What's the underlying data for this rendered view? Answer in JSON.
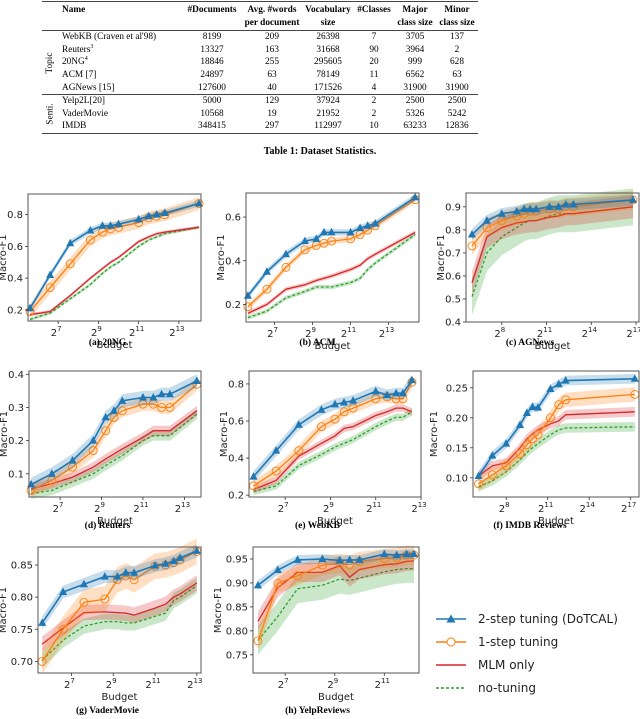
{
  "table": {
    "headers": [
      "",
      "Name",
      "#Documents",
      "Avg. #words per document",
      "Vocabulary size",
      "#Classes",
      "Major class size",
      "Minor class size"
    ],
    "header_lines": [
      [
        "",
        "Name",
        "#Documents",
        "Avg. #words",
        "Vocabulary",
        "#Classes",
        "Major",
        "Minor"
      ],
      [
        "",
        "",
        "",
        "per document",
        "size",
        "",
        "class size",
        "class size"
      ]
    ],
    "groups": [
      {
        "label": "Topic",
        "rows": [
          {
            "name": "WebKB (Craven et al'98)",
            "sup": "",
            "documents": "8199",
            "avg_words": "209",
            "vocab": "26398",
            "classes": "7",
            "major": "3705",
            "minor": "137"
          },
          {
            "name": "Reuters",
            "sup": "3",
            "documents": "13327",
            "avg_words": "163",
            "vocab": "31668",
            "classes": "90",
            "major": "3964",
            "minor": "2"
          },
          {
            "name": "20NG",
            "sup": "4",
            "documents": "18846",
            "avg_words": "255",
            "vocab": "295605",
            "classes": "20",
            "major": "999",
            "minor": "628"
          },
          {
            "name": "ACM [7]",
            "sup": "",
            "documents": "24897",
            "avg_words": "63",
            "vocab": "78149",
            "classes": "11",
            "major": "6562",
            "minor": "63"
          },
          {
            "name": "AGNews [15]",
            "sup": "",
            "documents": "127600",
            "avg_words": "40",
            "vocab": "171526",
            "classes": "4",
            "major": "31900",
            "minor": "31900"
          }
        ]
      },
      {
        "label": "Senti.",
        "rows": [
          {
            "name": "Yelp2L[20]",
            "sup": "",
            "documents": "5000",
            "avg_words": "129",
            "vocab": "37924",
            "classes": "2",
            "major": "2500",
            "minor": "2500"
          },
          {
            "name": "VaderMovie",
            "sup": "",
            "documents": "10568",
            "avg_words": "19",
            "vocab": "21952",
            "classes": "2",
            "major": "5326",
            "minor": "5242"
          },
          {
            "name": "IMDB",
            "sup": "",
            "documents": "348415",
            "avg_words": "297",
            "vocab": "112997",
            "classes": "10",
            "major": "63233",
            "minor": "12836"
          }
        ]
      }
    ],
    "caption": "Table 1: Dataset Statistics."
  },
  "legend": [
    {
      "key": "dotcal",
      "label": "2-step tuning (DoTCAL)",
      "color": "#1f77b4",
      "marker": "triangle",
      "dash": "solid"
    },
    {
      "key": "one",
      "label": "1-step tuning",
      "color": "#ff7f0e",
      "marker": "circle",
      "dash": "solid"
    },
    {
      "key": "mlm",
      "label": "MLM only",
      "color": "#d62728",
      "marker": "none",
      "dash": "solid"
    },
    {
      "key": "none",
      "label": "no-tuning",
      "color": "#2ca02c",
      "marker": "none",
      "dash": "dashed"
    }
  ],
  "chart_data": [
    {
      "type": "line",
      "id": "a",
      "title": "(a) 20NG",
      "xlabel": "Budget",
      "ylabel": "Macro-F1",
      "xscale": "log2",
      "xlim_log2": [
        5.5,
        14.1
      ],
      "xticks_log2": [
        7,
        9,
        11,
        13
      ],
      "ylim": [
        0.13,
        0.93
      ],
      "yticks": [
        "0.2",
        "0.4",
        "0.6",
        "0.8"
      ],
      "x_log2": [
        5.6,
        6.6,
        7.6,
        8.6,
        9.2,
        9.6,
        10.0,
        11.0,
        11.5,
        11.9,
        12.3,
        14.0
      ],
      "series": [
        {
          "key": "dotcal",
          "values": [
            0.21,
            0.42,
            0.62,
            0.7,
            0.73,
            0.73,
            0.74,
            0.77,
            0.79,
            0.8,
            0.81,
            0.87
          ],
          "band": 0.02
        },
        {
          "key": "one",
          "values": [
            0.19,
            0.34,
            0.49,
            0.64,
            0.69,
            0.71,
            0.72,
            0.75,
            0.78,
            0.79,
            0.8,
            0.87
          ],
          "band": 0.04
        },
        {
          "key": "mlm",
          "values": [
            0.17,
            0.19,
            0.29,
            0.4,
            0.46,
            0.5,
            0.53,
            0.63,
            0.66,
            0.68,
            0.69,
            0.72
          ],
          "band": 0.01
        },
        {
          "key": "none",
          "values": [
            0.14,
            0.18,
            0.27,
            0.36,
            0.43,
            0.47,
            0.5,
            0.6,
            0.64,
            0.66,
            0.68,
            0.72
          ],
          "band": 0.01
        }
      ]
    },
    {
      "type": "line",
      "id": "b",
      "title": "(b) ACM",
      "xlabel": "Budget",
      "ylabel": "Macro-F1",
      "xscale": "log2",
      "xlim_log2": [
        5.5,
        14.6
      ],
      "xticks_log2": [
        7,
        9,
        11,
        13
      ],
      "ylim": [
        0.12,
        0.71
      ],
      "yticks": [
        "0.2",
        "0.4",
        "0.6"
      ],
      "x_log2": [
        5.6,
        6.6,
        7.6,
        8.6,
        9.2,
        9.6,
        10.0,
        11.0,
        11.5,
        11.9,
        12.3,
        14.4
      ],
      "series": [
        {
          "key": "dotcal",
          "values": [
            0.24,
            0.35,
            0.43,
            0.49,
            0.5,
            0.53,
            0.53,
            0.53,
            0.55,
            0.56,
            0.57,
            0.69
          ],
          "band": 0.015
        },
        {
          "key": "one",
          "values": [
            0.19,
            0.27,
            0.37,
            0.45,
            0.47,
            0.48,
            0.49,
            0.5,
            0.52,
            0.54,
            0.56,
            0.68
          ],
          "band": 0.015
        },
        {
          "key": "mlm",
          "values": [
            0.16,
            0.2,
            0.27,
            0.29,
            0.31,
            0.32,
            0.33,
            0.36,
            0.38,
            0.41,
            0.43,
            0.53
          ],
          "band": 0.01
        },
        {
          "key": "none",
          "values": [
            0.14,
            0.17,
            0.23,
            0.26,
            0.28,
            0.28,
            0.28,
            0.3,
            0.32,
            0.36,
            0.39,
            0.52
          ],
          "band": 0.01
        }
      ]
    },
    {
      "type": "line",
      "id": "c",
      "title": "(c) AGNews",
      "xlabel": "Budget",
      "ylabel": "Macro-F1",
      "xscale": "log2",
      "xlim_log2": [
        5.6,
        17.2
      ],
      "xticks_log2": [
        8,
        11,
        14,
        17
      ],
      "ylim": [
        0.4,
        0.96
      ],
      "yticks": [
        "0.4",
        "0.5",
        "0.6",
        "0.7",
        "0.8",
        "0.9"
      ],
      "x_log2": [
        6.0,
        7.0,
        8.0,
        9.0,
        9.5,
        9.9,
        10.3,
        11.2,
        11.8,
        12.3,
        12.8,
        16.8
      ],
      "series": [
        {
          "key": "dotcal",
          "values": [
            0.78,
            0.84,
            0.87,
            0.88,
            0.89,
            0.89,
            0.89,
            0.9,
            0.9,
            0.91,
            0.91,
            0.93
          ],
          "band": 0.025
        },
        {
          "key": "one",
          "values": [
            0.73,
            0.81,
            0.84,
            0.86,
            0.87,
            0.88,
            0.88,
            0.89,
            0.89,
            0.9,
            0.9,
            0.93
          ],
          "band": 0.04
        },
        {
          "key": "mlm",
          "values": [
            0.57,
            0.77,
            0.81,
            0.83,
            0.835,
            0.84,
            0.84,
            0.855,
            0.86,
            0.87,
            0.87,
            0.9
          ],
          "band": 0.05
        },
        {
          "key": "none",
          "values": [
            0.51,
            0.7,
            0.77,
            0.81,
            0.83,
            0.84,
            0.84,
            0.86,
            0.87,
            0.87,
            0.87,
            0.9
          ],
          "band": 0.08
        }
      ]
    },
    {
      "type": "line",
      "id": "d",
      "title": "(d) Reuters",
      "xlabel": "Budget",
      "ylabel": "Macro-F1",
      "xscale": "log2",
      "xlim_log2": [
        5.5,
        13.8
      ],
      "xticks_log2": [
        7,
        9,
        11,
        13
      ],
      "ylim": [
        0.03,
        0.41
      ],
      "yticks": [
        "0.1",
        "0.2",
        "0.3",
        "0.4"
      ],
      "x_log2": [
        5.6,
        6.6,
        7.6,
        8.6,
        9.2,
        9.6,
        10.0,
        11.0,
        11.5,
        11.9,
        12.3,
        13.6
      ],
      "series": [
        {
          "key": "dotcal",
          "values": [
            0.068,
            0.1,
            0.14,
            0.2,
            0.27,
            0.29,
            0.32,
            0.33,
            0.33,
            0.34,
            0.34,
            0.38
          ],
          "band": 0.02
        },
        {
          "key": "one",
          "values": [
            0.05,
            0.08,
            0.12,
            0.17,
            0.23,
            0.27,
            0.29,
            0.31,
            0.31,
            0.3,
            0.3,
            0.37
          ],
          "band": 0.02
        },
        {
          "key": "mlm",
          "values": [
            0.055,
            0.07,
            0.09,
            0.12,
            0.145,
            0.16,
            0.175,
            0.21,
            0.23,
            0.23,
            0.23,
            0.29
          ],
          "band": 0.015
        },
        {
          "key": "none",
          "values": [
            0.04,
            0.05,
            0.075,
            0.1,
            0.125,
            0.14,
            0.155,
            0.2,
            0.215,
            0.215,
            0.215,
            0.28
          ],
          "band": 0.015
        }
      ]
    },
    {
      "type": "line",
      "id": "e",
      "title": "(e) WebKB",
      "xlabel": "Budget",
      "ylabel": "Macro-F1",
      "xscale": "log2",
      "xlim_log2": [
        5.4,
        13.0
      ],
      "xticks_log2": [
        7,
        9,
        11,
        13
      ],
      "ylim": [
        0.19,
        0.87
      ],
      "yticks": [
        "0.2",
        "0.4",
        "0.6",
        "0.8"
      ],
      "x_log2": [
        5.6,
        6.6,
        7.6,
        8.6,
        9.2,
        9.6,
        10.0,
        11.0,
        11.5,
        11.9,
        12.2,
        12.6
      ],
      "series": [
        {
          "key": "dotcal",
          "values": [
            0.3,
            0.44,
            0.58,
            0.66,
            0.69,
            0.7,
            0.71,
            0.76,
            0.74,
            0.75,
            0.75,
            0.82
          ],
          "band": 0.03
        },
        {
          "key": "one",
          "values": [
            0.25,
            0.33,
            0.44,
            0.57,
            0.61,
            0.65,
            0.67,
            0.72,
            0.73,
            0.72,
            0.72,
            0.81
          ],
          "band": 0.03
        },
        {
          "key": "mlm",
          "values": [
            0.23,
            0.28,
            0.41,
            0.48,
            0.52,
            0.56,
            0.57,
            0.63,
            0.65,
            0.67,
            0.67,
            0.65
          ],
          "band": 0.02
        },
        {
          "key": "none",
          "values": [
            0.22,
            0.25,
            0.36,
            0.42,
            0.46,
            0.48,
            0.5,
            0.57,
            0.6,
            0.62,
            0.62,
            0.65
          ],
          "band": 0.02
        }
      ]
    },
    {
      "type": "line",
      "id": "f",
      "title": "(f) IMDB Reviews",
      "xlabel": "Budget",
      "ylabel": "Macro-F1",
      "xscale": "log2",
      "xlim_log2": [
        5.6,
        17.6
      ],
      "xticks_log2": [
        8,
        11,
        14,
        17
      ],
      "ylim": [
        0.068,
        0.278
      ],
      "yticks": [
        "0.10",
        "0.15",
        "0.20",
        "0.25"
      ],
      "x_log2": [
        6.0,
        7.0,
        8.0,
        9.0,
        9.5,
        9.9,
        10.3,
        11.2,
        11.8,
        12.3,
        17.3
      ],
      "series": [
        {
          "key": "dotcal",
          "values": [
            0.103,
            0.137,
            0.157,
            0.188,
            0.208,
            0.218,
            0.217,
            0.248,
            0.256,
            0.262,
            0.265
          ],
          "band": 0.008
        },
        {
          "key": "one",
          "values": [
            0.09,
            0.105,
            0.12,
            0.14,
            0.155,
            0.165,
            0.172,
            0.2,
            0.222,
            0.23,
            0.239
          ],
          "band": 0.012
        },
        {
          "key": "mlm",
          "values": [
            0.103,
            0.12,
            0.125,
            0.15,
            0.165,
            0.173,
            0.18,
            0.19,
            0.195,
            0.205,
            0.21
          ],
          "band": 0.008
        },
        {
          "key": "none",
          "values": [
            0.085,
            0.095,
            0.11,
            0.13,
            0.142,
            0.15,
            0.157,
            0.172,
            0.18,
            0.183,
            0.185
          ],
          "band": 0.008
        }
      ]
    },
    {
      "type": "line",
      "id": "g",
      "title": "(g) VaderMovie",
      "xlabel": "Budget",
      "ylabel": "Macro-F1",
      "xscale": "log2",
      "xlim_log2": [
        5.4,
        13.2
      ],
      "xticks_log2": [
        7,
        9,
        11,
        13
      ],
      "ylim": [
        0.682,
        0.878
      ],
      "yticks": [
        "0.70",
        "0.75",
        "0.80",
        "0.85"
      ],
      "x_log2": [
        5.6,
        6.6,
        7.6,
        8.6,
        9.2,
        9.6,
        10.0,
        11.0,
        11.5,
        11.9,
        12.2,
        13.0
      ],
      "series": [
        {
          "key": "dotcal",
          "values": [
            0.76,
            0.808,
            0.82,
            0.832,
            0.832,
            0.838,
            0.838,
            0.849,
            0.852,
            0.856,
            0.861,
            0.872
          ],
          "band": 0.01
        },
        {
          "key": "one",
          "values": [
            0.7,
            0.75,
            0.792,
            0.797,
            0.827,
            0.833,
            0.827,
            0.848,
            0.85,
            0.854,
            0.858,
            0.871
          ],
          "band": 0.02
        },
        {
          "key": "mlm",
          "values": [
            0.727,
            0.752,
            0.776,
            0.777,
            0.776,
            0.775,
            0.772,
            0.783,
            0.789,
            0.8,
            0.805,
            0.822
          ],
          "band": 0.012
        },
        {
          "key": "none",
          "values": [
            0.702,
            0.733,
            0.755,
            0.762,
            0.762,
            0.76,
            0.76,
            0.77,
            0.775,
            0.795,
            0.8,
            0.818
          ],
          "band": 0.012
        }
      ]
    },
    {
      "type": "line",
      "id": "h",
      "title": "(h) YelpReviews",
      "xlabel": "Budget",
      "ylabel": "Macro-F1",
      "xscale": "log2",
      "xlim_log2": [
        5.7,
        12.4
      ],
      "xticks_log2": [
        7,
        9,
        11
      ],
      "ylim": [
        0.712,
        0.975
      ],
      "yticks": [
        "0.75",
        "0.80",
        "0.85",
        "0.90",
        "0.95"
      ],
      "x_log2": [
        5.9,
        6.7,
        7.5,
        8.5,
        9.2,
        9.6,
        10.0,
        11.0,
        11.5,
        11.9,
        12.2
      ],
      "series": [
        {
          "key": "dotcal",
          "values": [
            0.895,
            0.927,
            0.948,
            0.95,
            0.947,
            0.948,
            0.948,
            0.96,
            0.958,
            0.96,
            0.96
          ],
          "band": 0.01
        },
        {
          "key": "one",
          "values": [
            0.779,
            0.899,
            0.915,
            0.937,
            0.941,
            0.938,
            0.945,
            0.951,
            0.953,
            0.958,
            0.958
          ],
          "band": 0.02
        },
        {
          "key": "mlm",
          "values": [
            0.82,
            0.89,
            0.922,
            0.922,
            0.936,
            0.912,
            0.928,
            0.938,
            0.94,
            0.945,
            0.946
          ],
          "band": 0.02
        },
        {
          "key": "none",
          "values": [
            0.78,
            0.83,
            0.888,
            0.895,
            0.908,
            0.905,
            0.91,
            0.923,
            0.928,
            0.93,
            0.93
          ],
          "band": 0.03
        }
      ]
    }
  ]
}
